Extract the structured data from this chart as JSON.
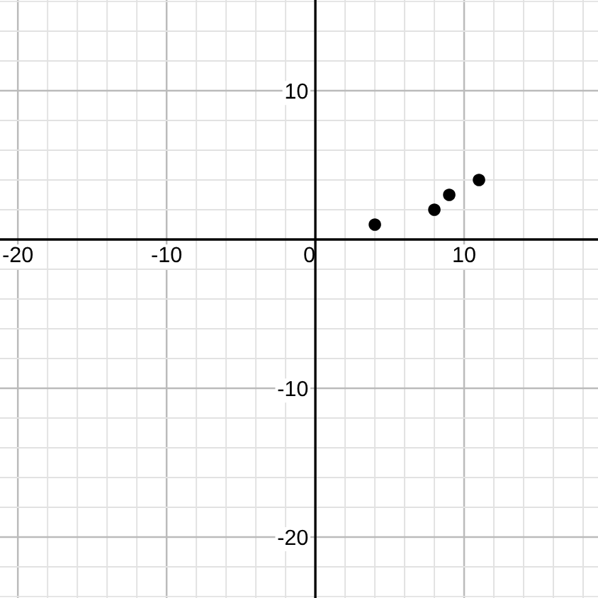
{
  "chart_data": {
    "type": "scatter",
    "x": [
      4,
      8,
      9,
      11
    ],
    "values": [
      1,
      2,
      3,
      4
    ],
    "color": "#000000",
    "marker": "circle",
    "xlim": [
      -21.2,
      19.0
    ],
    "ylim": [
      -24.1,
      16.1
    ],
    "xticks": [
      -20,
      -10,
      0,
      10
    ],
    "yticks": [
      -20,
      -10,
      10
    ],
    "grid": true
  }
}
